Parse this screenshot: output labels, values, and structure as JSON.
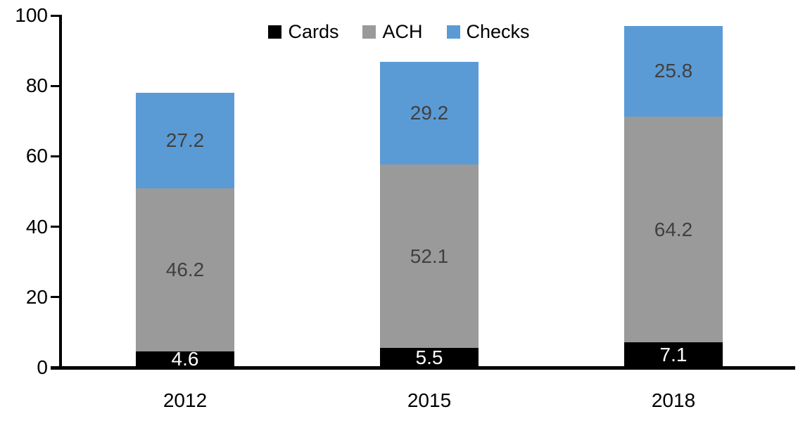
{
  "chart_data": {
    "type": "bar",
    "stacked": true,
    "title": "",
    "categories": [
      "2012",
      "2015",
      "2018"
    ],
    "series": [
      {
        "name": "Cards",
        "color": "#000000",
        "label_color": "#FFFFFF",
        "values": [
          4.6,
          5.5,
          7.1
        ]
      },
      {
        "name": "ACH",
        "color": "#9A9A9A",
        "label_color": "#404040",
        "values": [
          46.2,
          52.1,
          64.2
        ]
      },
      {
        "name": "Checks",
        "color": "#5B9BD5",
        "label_color": "#404040",
        "values": [
          27.2,
          29.2,
          25.8
        ]
      }
    ],
    "y_ticks": [
      "0",
      "20",
      "40",
      "60",
      "80",
      "100"
    ],
    "ylim": [
      0,
      100
    ],
    "legend_position": "top-center",
    "grid": false,
    "axis_color": "#000000",
    "background_color": "#FFFFFF"
  }
}
